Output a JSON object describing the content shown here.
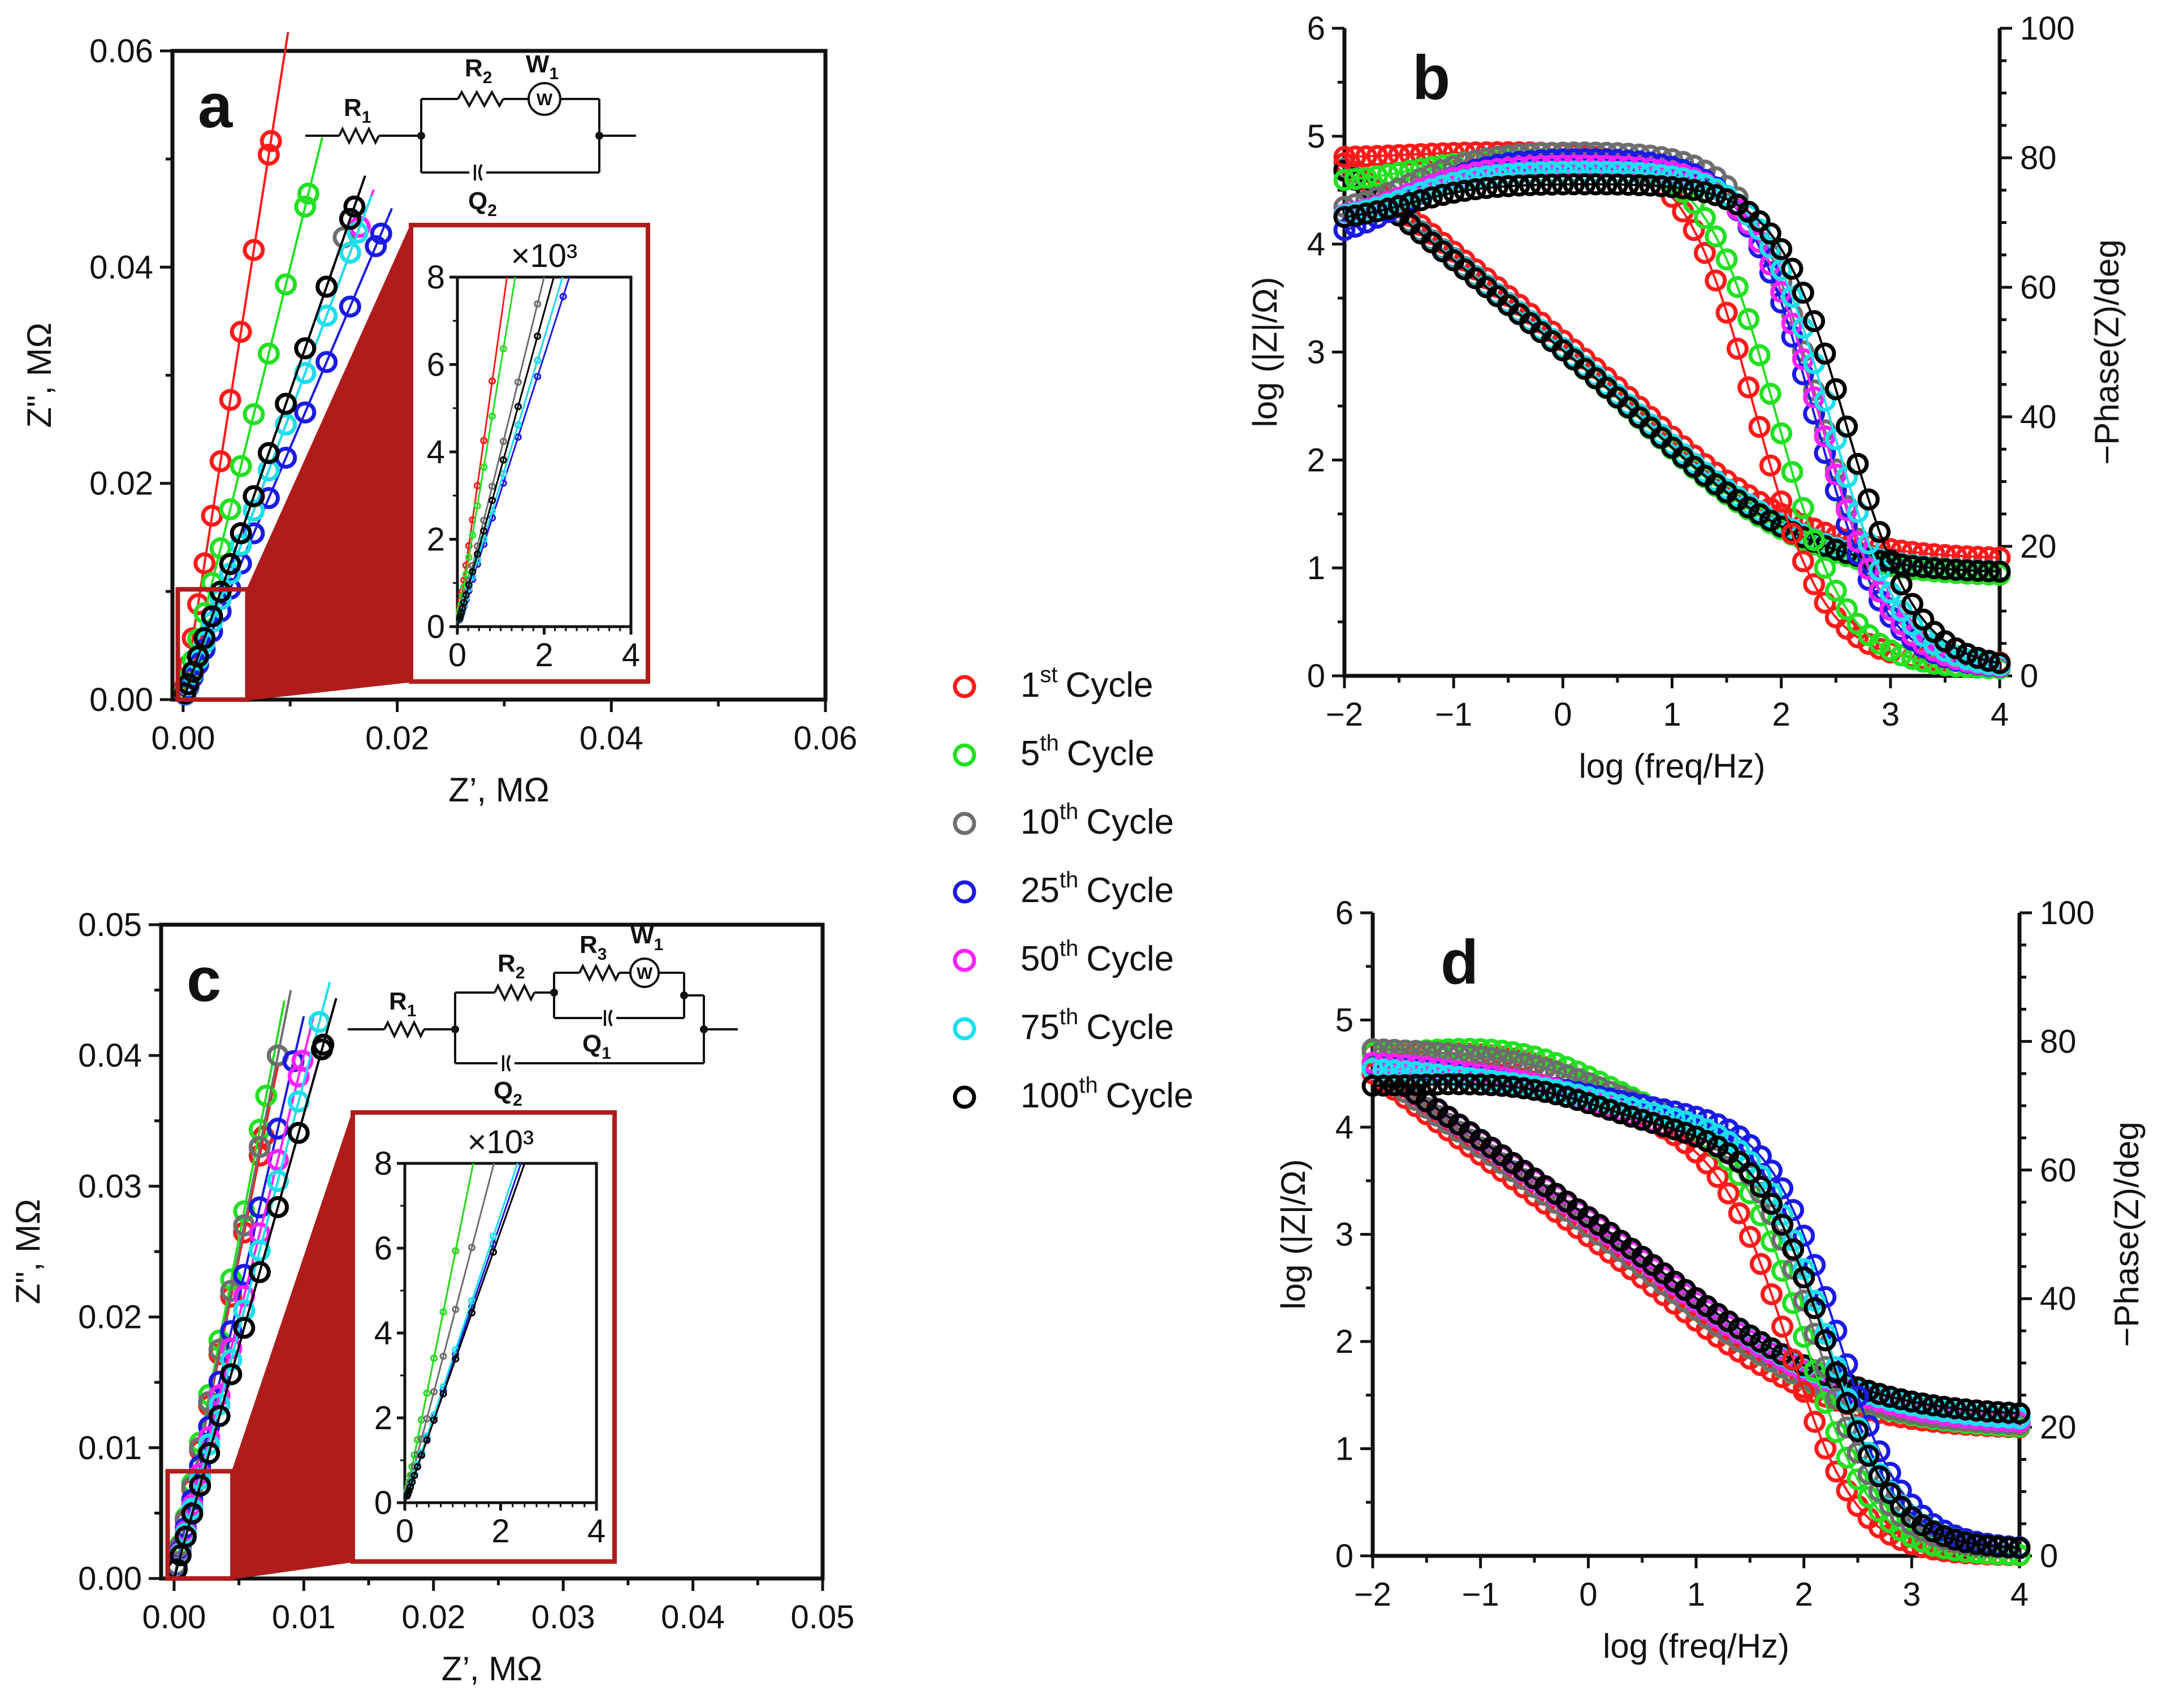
{
  "colors": {
    "1st": "#ff1a1a",
    "5th": "#22e022",
    "10th": "#6e6e6e",
    "25th": "#1a1ae6",
    "50th": "#ff22ff",
    "75th": "#19e0ec",
    "100th": "#000000",
    "zoom": "#b01c1c"
  },
  "legend": [
    {
      "key": "1st",
      "num": "1",
      "sup": "st",
      "text": "Cycle"
    },
    {
      "key": "5th",
      "num": "5",
      "sup": "th",
      "text": "Cycle"
    },
    {
      "key": "10th",
      "num": "10",
      "sup": "th",
      "text": "Cycle"
    },
    {
      "key": "25th",
      "num": "25",
      "sup": "th",
      "text": "Cycle"
    },
    {
      "key": "50th",
      "num": "50",
      "sup": "th",
      "text": "Cycle"
    },
    {
      "key": "75th",
      "num": "75",
      "sup": "th",
      "text": "Cycle"
    },
    {
      "key": "100th",
      "num": "100",
      "sup": "th",
      "text": "Cycle"
    }
  ],
  "circuits": {
    "a": {
      "labels": [
        {
          "main": "R",
          "sub": "1"
        },
        {
          "main": "R",
          "sub": "2"
        },
        {
          "main": "W",
          "sub": "1"
        },
        {
          "main": "Q",
          "sub": "2"
        }
      ],
      "warburg_symbol": "W"
    },
    "c": {
      "labels": [
        {
          "main": "R",
          "sub": "1"
        },
        {
          "main": "R",
          "sub": "2"
        },
        {
          "main": "R",
          "sub": "3"
        },
        {
          "main": "W",
          "sub": "1"
        },
        {
          "main": "Q",
          "sub": "1"
        },
        {
          "main": "Q",
          "sub": "2"
        }
      ],
      "warburg_symbol": "W"
    }
  },
  "chart_data": [
    {
      "id": "a",
      "type": "scatter",
      "panel_label": "a",
      "xlabel": "Z’, MΩ",
      "ylabel": "Z\", MΩ",
      "xlim": [
        -0.001,
        0.06
      ],
      "ylim": [
        0,
        0.06
      ],
      "xticks": [
        0,
        0.02,
        0.04,
        0.06
      ],
      "xtick_labels": [
        "0.00",
        "0.02",
        "0.04",
        "0.06"
      ],
      "yticks": [
        0,
        0.02,
        0.04,
        0.06
      ],
      "ytick_labels": [
        "0.00",
        "0.02",
        "0.04",
        "0.06"
      ],
      "series": [
        {
          "key": "1st",
          "slope": 6.3,
          "xmax": 0.0082,
          "fit_xmax": 0.0098
        },
        {
          "key": "5th",
          "slope": 4.0,
          "xmax": 0.0117,
          "fit_xmax": 0.013
        },
        {
          "key": "10th",
          "slope": 2.85,
          "xmax": 0.015,
          "fit_xmax": 0.0165
        },
        {
          "key": "25th",
          "slope": 2.33,
          "xmax": 0.0185,
          "fit_xmax": 0.0195
        },
        {
          "key": "50th",
          "slope": 2.65,
          "xmax": 0.0165,
          "fit_xmax": 0.0178
        },
        {
          "key": "75th",
          "slope": 2.65,
          "xmax": 0.0163,
          "fit_xmax": 0.0176
        },
        {
          "key": "100th",
          "slope": 2.85,
          "xmax": 0.016,
          "fit_xmax": 0.017
        }
      ],
      "zoom_region": {
        "x": [
          -0.0005,
          0.006
        ],
        "y": [
          0,
          0.0102
        ]
      },
      "inset": {
        "title": "×10³",
        "xlim": [
          0,
          4
        ],
        "ylim": [
          0,
          8
        ],
        "xticks": [
          0,
          2,
          4
        ],
        "xtick_labels": [
          "0",
          "2",
          "4"
        ],
        "yticks": [
          0,
          2,
          4,
          6,
          8
        ],
        "ytick_labels": [
          "0",
          "2",
          "4",
          "6",
          "8"
        ],
        "slopes": {
          "1st": 7.0,
          "5th": 6.0,
          "10th": 4.0,
          "25th": 3.1,
          "50th": 3.3,
          "75th": 3.3,
          "100th": 3.6
        }
      }
    },
    {
      "id": "b",
      "type": "line",
      "panel_label": "b",
      "xlabel": "log (freq/Hz)",
      "ylabel": "log (|Z|/Ω)",
      "y2label": "−Phase(Z)/deg",
      "xlim": [
        -2,
        4
      ],
      "ylim": [
        0,
        6
      ],
      "y2lim": [
        0,
        100
      ],
      "xticks": [
        -2,
        -1,
        0,
        1,
        2,
        3,
        4
      ],
      "xtick_labels": [
        "−2",
        "−1",
        "0",
        "1",
        "2",
        "3",
        "4"
      ],
      "yticks": [
        0,
        1,
        2,
        3,
        4,
        5,
        6
      ],
      "ytick_labels": [
        "0",
        "1",
        "2",
        "3",
        "4",
        "5",
        "6"
      ],
      "y2ticks": [
        0,
        20,
        40,
        60,
        80,
        100
      ],
      "y2tick_labels": [
        "0",
        "20",
        "40",
        "60",
        "80",
        "100"
      ],
      "magnitude": {
        "series": [
          {
            "key": "1st",
            "high": 1.08,
            "low_slope": 0.82,
            "start": 4.75
          },
          {
            "key": "5th",
            "high": 0.92,
            "low_slope": 0.84,
            "start": 4.7
          },
          {
            "key": "10th",
            "high": 0.95,
            "low_slope": 0.83,
            "start": 4.7
          },
          {
            "key": "25th",
            "high": 0.95,
            "low_slope": 0.82,
            "start": 4.68
          },
          {
            "key": "50th",
            "high": 0.95,
            "low_slope": 0.82,
            "start": 4.68
          },
          {
            "key": "75th",
            "high": 0.95,
            "low_slope": 0.82,
            "start": 4.68
          },
          {
            "key": "100th",
            "high": 0.95,
            "low_slope": 0.83,
            "start": 4.68
          }
        ]
      },
      "phase": {
        "series": [
          {
            "key": "1st",
            "plateau": 81,
            "start": 80,
            "fc": 1.75,
            "end": 2
          },
          {
            "key": "5th",
            "plateau": 80,
            "start": 76,
            "fc": 1.95,
            "end": 1
          },
          {
            "key": "10th",
            "plateau": 81,
            "start": 71,
            "fc": 2.35,
            "end": 1
          },
          {
            "key": "25th",
            "plateau": 80,
            "start": 67,
            "fc": 2.3,
            "end": 1
          },
          {
            "key": "50th",
            "plateau": 79,
            "start": 70,
            "fc": 2.35,
            "end": 1
          },
          {
            "key": "75th",
            "plateau": 78,
            "start": 70,
            "fc": 2.45,
            "end": 1
          },
          {
            "key": "100th",
            "plateau": 76,
            "start": 70,
            "fc": 2.6,
            "end": 1
          }
        ]
      }
    },
    {
      "id": "c",
      "type": "scatter",
      "panel_label": "c",
      "xlabel": "Z’, MΩ",
      "ylabel": "Z\", MΩ",
      "xlim": [
        -0.001,
        0.05
      ],
      "ylim": [
        0,
        0.05
      ],
      "xticks": [
        0,
        0.01,
        0.02,
        0.03,
        0.04,
        0.05
      ],
      "xtick_labels": [
        "0.00",
        "0.01",
        "0.02",
        "0.03",
        "0.04",
        "0.05"
      ],
      "yticks": [
        0,
        0.01,
        0.02,
        0.03,
        0.04,
        0.05
      ],
      "ytick_labels": [
        "0.00",
        "0.01",
        "0.02",
        "0.03",
        "0.04",
        "0.05"
      ],
      "series": [
        {
          "key": "1st",
          "slope": 4.9,
          "xmax": 0.0069,
          "fit_xmax": 0.008
        },
        {
          "key": "5th",
          "slope": 5.2,
          "xmax": 0.0071,
          "fit_xmax": 0.0085
        },
        {
          "key": "10th",
          "slope": 5.0,
          "xmax": 0.008,
          "fit_xmax": 0.009
        },
        {
          "key": "25th",
          "slope": 4.3,
          "xmax": 0.0092,
          "fit_xmax": 0.01
        },
        {
          "key": "50th",
          "slope": 4.0,
          "xmax": 0.0099,
          "fit_xmax": 0.0108
        },
        {
          "key": "75th",
          "slope": 3.8,
          "xmax": 0.0112,
          "fit_xmax": 0.012
        },
        {
          "key": "100th",
          "slope": 3.55,
          "xmax": 0.0115,
          "fit_xmax": 0.0125
        }
      ],
      "zoom_region": {
        "x": [
          -0.0005,
          0.0045
        ],
        "y": [
          0,
          0.0082
        ]
      },
      "inset": {
        "title": "×10³",
        "xlim": [
          0,
          4
        ],
        "ylim": [
          0,
          8
        ],
        "xticks": [
          0,
          2,
          4
        ],
        "xtick_labels": [
          "0",
          "2",
          "4"
        ],
        "yticks": [
          0,
          2,
          4,
          6,
          8
        ],
        "ytick_labels": [
          "0",
          "2",
          "4",
          "6",
          "8"
        ],
        "slopes": {
          "1st": 5.6,
          "5th": 5.6,
          "10th": 4.3,
          "25th": 3.3,
          "50th": 3.2,
          "75th": 3.4,
          "100th": 3.2
        }
      }
    },
    {
      "id": "d",
      "type": "line",
      "panel_label": "d",
      "xlabel": "log (freq/Hz)",
      "ylabel": "log (|Z|/Ω)",
      "y2label": "−Phase(Z)/deg",
      "xlim": [
        -2,
        4
      ],
      "ylim": [
        0,
        6
      ],
      "y2lim": [
        0,
        100
      ],
      "xticks": [
        -2,
        -1,
        0,
        1,
        2,
        3,
        4
      ],
      "xtick_labels": [
        "−2",
        "−1",
        "0",
        "1",
        "2",
        "3",
        "4"
      ],
      "yticks": [
        0,
        1,
        2,
        3,
        4,
        5,
        6
      ],
      "ytick_labels": [
        "0",
        "1",
        "2",
        "3",
        "4",
        "5",
        "6"
      ],
      "y2ticks": [
        0,
        20,
        40,
        60,
        80,
        100
      ],
      "y2tick_labels": [
        "0",
        "20",
        "40",
        "60",
        "80",
        "100"
      ],
      "magnitude": {
        "series": [
          {
            "key": "1st",
            "high": 1.18,
            "low_slope": 0.76,
            "start": 4.5
          },
          {
            "key": "5th",
            "high": 1.18,
            "low_slope": 0.74,
            "start": 4.55
          },
          {
            "key": "10th",
            "high": 1.2,
            "low_slope": 0.74,
            "start": 4.55
          },
          {
            "key": "25th",
            "high": 1.22,
            "low_slope": 0.73,
            "start": 4.6
          },
          {
            "key": "50th",
            "high": 1.22,
            "low_slope": 0.73,
            "start": 4.6
          },
          {
            "key": "75th",
            "high": 1.25,
            "low_slope": 0.72,
            "start": 4.6
          },
          {
            "key": "100th",
            "high": 1.3,
            "low_slope": 0.72,
            "start": 4.6
          }
        ]
      },
      "phase": {
        "series": [
          {
            "key": "1st",
            "plateau": 79,
            "start": 78,
            "fc": 1.85,
            "end": 0,
            "shoulder": 66
          },
          {
            "key": "5th",
            "plateau": 80,
            "start": 78,
            "fc": 2.0,
            "end": 0,
            "shoulder": 68
          },
          {
            "key": "10th",
            "plateau": 78,
            "start": 79,
            "fc": 2.1,
            "end": 1,
            "shoulder": 68
          },
          {
            "key": "25th",
            "plateau": 74,
            "start": 77,
            "fc": 2.3,
            "end": 1,
            "shoulder": 69
          },
          {
            "key": "50th",
            "plateau": 75,
            "start": 77,
            "fc": 2.2,
            "end": 1,
            "shoulder": 66
          },
          {
            "key": "75th",
            "plateau": 74,
            "start": 76,
            "fc": 2.2,
            "end": 1,
            "shoulder": 68
          },
          {
            "key": "100th",
            "plateau": 74,
            "start": 73,
            "fc": 2.2,
            "end": 1,
            "shoulder": 66
          }
        ]
      }
    }
  ]
}
